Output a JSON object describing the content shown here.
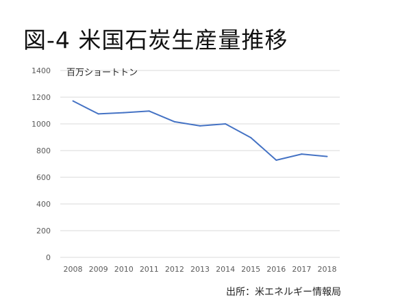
{
  "title": "図-4 米国石炭生産量推移",
  "source": "出所：米エネルギー情報局",
  "chart_data": {
    "type": "line",
    "title": "",
    "xlabel": "",
    "ylabel": "百万ショートトン",
    "categories": [
      "2008",
      "2009",
      "2010",
      "2011",
      "2012",
      "2013",
      "2014",
      "2015",
      "2016",
      "2017",
      "2018"
    ],
    "series": [
      {
        "values": [
          1172,
          1075,
          1084,
          1096,
          1016,
          985,
          1000,
          897,
          728,
          774,
          756
        ]
      }
    ],
    "ylim": [
      0,
      1400
    ],
    "yticks": [
      "0",
      "200",
      "400",
      "600",
      "800",
      "1000",
      "1200",
      "1400"
    ],
    "grid": true,
    "legend": "none",
    "line_color": "#4472c4",
    "grid_color": "#d9d9d9"
  }
}
